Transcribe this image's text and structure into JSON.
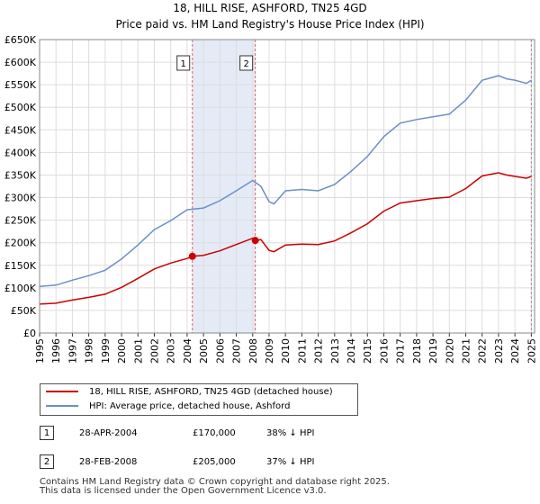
{
  "header": {
    "title": "18, HILL RISE, ASHFORD, TN25 4GD",
    "subtitle": "Price paid vs. HM Land Registry's House Price Index (HPI)"
  },
  "colors": {
    "red": "#cc0000",
    "blue": "#6b8fc7",
    "band": "#dde6f5",
    "vline": "#e06060"
  },
  "chart_data": {
    "type": "line",
    "title": "18, HILL RISE, ASHFORD, TN25 4GD",
    "subtitle": "Price paid vs. HM Land Registry's House Price Index (HPI)",
    "xlim": [
      1995,
      2025.2
    ],
    "ylim": [
      0,
      650000
    ],
    "y_ticks": [
      0,
      50000,
      100000,
      150000,
      200000,
      250000,
      300000,
      350000,
      400000,
      450000,
      500000,
      550000,
      600000,
      650000
    ],
    "y_tick_labels": [
      "£0",
      "£50K",
      "£100K",
      "£150K",
      "£200K",
      "£250K",
      "£300K",
      "£350K",
      "£400K",
      "£450K",
      "£500K",
      "£550K",
      "£600K",
      "£650K"
    ],
    "x_ticks": [
      1995,
      1996,
      1997,
      1998,
      1999,
      2000,
      2001,
      2002,
      2003,
      2004,
      2005,
      2006,
      2007,
      2008,
      2009,
      2010,
      2011,
      2012,
      2013,
      2014,
      2015,
      2016,
      2017,
      2018,
      2019,
      2020,
      2021,
      2022,
      2023,
      2024,
      2025
    ],
    "x_tick_labels": [
      "1995",
      "1996",
      "1997",
      "1998",
      "1999",
      "2000",
      "2001",
      "2002",
      "2003",
      "2004",
      "2005",
      "2006",
      "2007",
      "2008",
      "2009",
      "2010",
      "2011",
      "2012",
      "2013",
      "2014",
      "2015",
      "2016",
      "2017",
      "2018",
      "2019",
      "2020",
      "2021",
      "2022",
      "2023",
      "2024",
      "2025"
    ],
    "grid": true,
    "shaded_region": [
      2004.32,
      2008.16
    ],
    "series": [
      {
        "name": "18, HILL RISE, ASHFORD, TN25 4GD (detached house)",
        "color": "#cc0000",
        "x": [
          1995,
          1996,
          1997,
          1998,
          1999,
          2000,
          2001,
          2002,
          2003,
          2004,
          2004.32,
          2005,
          2006,
          2007,
          2008,
          2008.16,
          2008.5,
          2009,
          2009.3,
          2010,
          2011,
          2012,
          2013,
          2014,
          2015,
          2016,
          2017,
          2018,
          2019,
          2020,
          2021,
          2022,
          2023,
          2023.5,
          2024,
          2024.7,
          2025
        ],
        "y": [
          64000,
          66000,
          73000,
          79000,
          86000,
          101000,
          121000,
          142000,
          155000,
          165000,
          170000,
          172000,
          182000,
          196000,
          210000,
          205000,
          207000,
          183000,
          180000,
          195000,
          197000,
          196000,
          204000,
          222000,
          242000,
          270000,
          288000,
          293000,
          298000,
          301000,
          320000,
          348000,
          355000,
          350000,
          347000,
          343000,
          347000
        ]
      },
      {
        "name": "HPI: Average price, detached house, Ashford",
        "color": "#6b8fc7",
        "x": [
          1995,
          1996,
          1997,
          1998,
          1999,
          2000,
          2001,
          2002,
          2003,
          2004,
          2005,
          2006,
          2007,
          2008,
          2008.5,
          2009,
          2009.3,
          2010,
          2011,
          2012,
          2013,
          2014,
          2015,
          2016,
          2017,
          2018,
          2019,
          2020,
          2021,
          2022,
          2023,
          2023.5,
          2024,
          2024.7,
          2025
        ],
        "y": [
          103000,
          106000,
          117000,
          127000,
          139000,
          164000,
          195000,
          229000,
          249000,
          273000,
          277000,
          293000,
          315000,
          338000,
          325000,
          291000,
          286000,
          315000,
          318000,
          315000,
          329000,
          358000,
          391000,
          435000,
          465000,
          473000,
          479000,
          485000,
          516000,
          560000,
          570000,
          563000,
          560000,
          553000,
          560000
        ]
      }
    ],
    "annotations": [
      {
        "label": "1",
        "x": 2004.32,
        "y": 170000
      },
      {
        "label": "2",
        "x": 2008.16,
        "y": 205000
      }
    ]
  },
  "legend": {
    "items": [
      {
        "label": "18, HILL RISE, ASHFORD, TN25 4GD (detached house)"
      },
      {
        "label": "HPI: Average price, detached house, Ashford"
      }
    ]
  },
  "sales": [
    {
      "num": "1",
      "date": "28-APR-2004",
      "price": "£170,000",
      "hpi": "38% ↓ HPI"
    },
    {
      "num": "2",
      "date": "28-FEB-2008",
      "price": "£205,000",
      "hpi": "37% ↓ HPI"
    }
  ],
  "footer": {
    "line1": "Contains HM Land Registry data © Crown copyright and database right 2025.",
    "line2": "This data is licensed under the Open Government Licence v3.0."
  }
}
